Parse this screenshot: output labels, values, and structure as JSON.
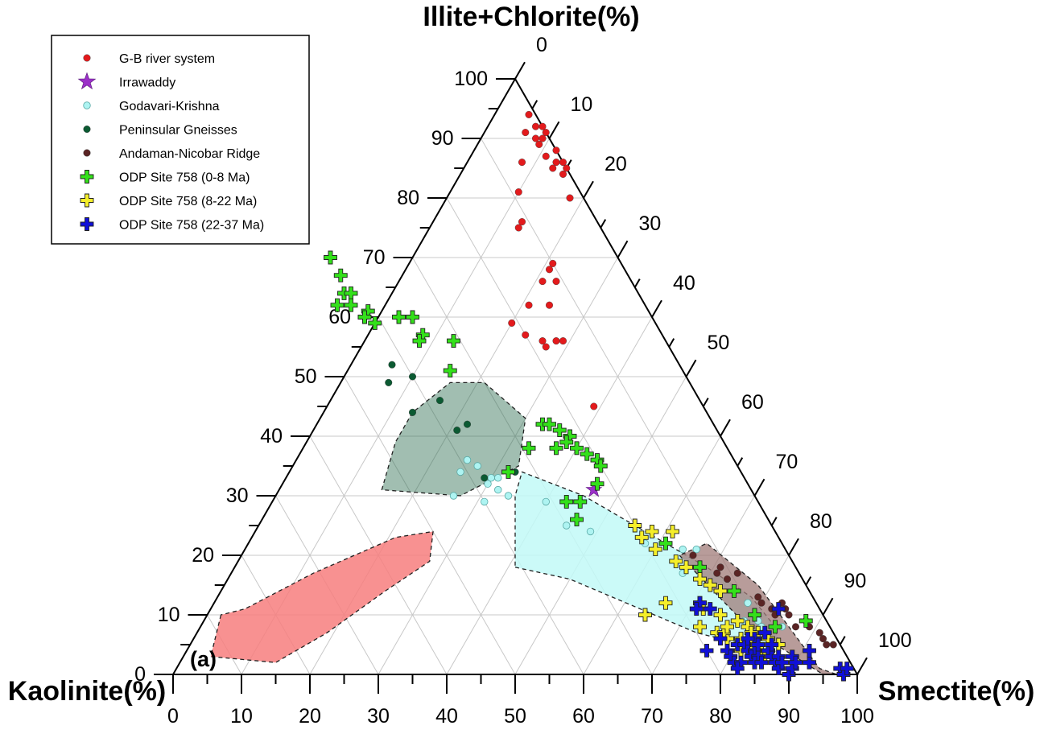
{
  "chart_data": {
    "type": "scatter",
    "subtype": "ternary",
    "panel_label": "(a)",
    "axes": {
      "top": "Illite+Chlorite(%)",
      "left": "Kaolinite(%)",
      "right": "Smectite(%)"
    },
    "ticks": [
      "0",
      "10",
      "20",
      "30",
      "40",
      "50",
      "60",
      "70",
      "80",
      "90",
      "100"
    ],
    "grid": true,
    "legend_position": "top-left",
    "legend": [
      {
        "label": "G-B river system",
        "marker": "dot",
        "color": "#e31a1c"
      },
      {
        "label": "Irrawaddy",
        "marker": "star",
        "color": "#9b30c8"
      },
      {
        "label": "Godavari-Krishna",
        "marker": "circle",
        "color": "#aef4f2"
      },
      {
        "label": "Peninsular Gneisses",
        "marker": "dot",
        "color": "#0b5a32"
      },
      {
        "label": "Andaman-Nicobar Ridge",
        "marker": "dot",
        "color": "#5a2424"
      },
      {
        "label": "ODP Site 758 (0-8 Ma)",
        "marker": "plus",
        "color": "#33e01a"
      },
      {
        "label": "ODP Site 758 (8-22 Ma)",
        "marker": "plus",
        "color": "#f5ee2a"
      },
      {
        "label": "ODP Site 758 (22-37 Ma)",
        "marker": "plus",
        "color": "#1010d8"
      }
    ],
    "fields": [
      {
        "series": "G-B river system",
        "fill": "#f77e7e",
        "opacity": 0.85,
        "outline": [
          [
            10,
            88,
            2
          ],
          [
            3,
            93,
            4
          ],
          [
            2,
            84,
            14
          ],
          [
            7,
            74,
            19
          ],
          [
            14,
            62,
            24
          ],
          [
            19,
            53,
            28
          ],
          [
            24,
            50,
            26
          ],
          [
            23,
            56,
            21
          ],
          [
            17,
            71,
            12
          ],
          [
            11,
            84,
            5
          ]
        ]
      },
      {
        "series": "Peninsular Gneisses",
        "fill": "#2f6e52",
        "opacity": 0.45,
        "outline": [
          [
            31,
            54,
            15
          ],
          [
            39,
            48,
            13
          ],
          [
            44,
            43,
            13
          ],
          [
            49,
            35,
            16
          ],
          [
            49,
            30,
            21
          ],
          [
            43,
            27,
            30
          ],
          [
            35,
            32,
            33
          ],
          [
            30,
            43,
            27
          ]
        ]
      },
      {
        "series": "Godavari-Krishna",
        "fill": "#c2f9f7",
        "opacity": 0.85,
        "outline": [
          [
            18,
            41,
            41
          ],
          [
            16,
            34,
            50
          ],
          [
            7,
            20,
            73
          ],
          [
            5,
            14,
            81
          ],
          [
            3,
            11,
            86
          ],
          [
            5,
            9,
            86
          ],
          [
            8,
            8,
            84
          ],
          [
            13,
            9,
            78
          ],
          [
            18,
            13,
            69
          ],
          [
            23,
            18,
            59
          ],
          [
            30,
            25,
            45
          ],
          [
            34,
            32,
            34
          ],
          [
            30,
            35,
            35
          ]
        ]
      },
      {
        "series": "Andaman-Nicobar Ridge",
        "fill": "#a07b78",
        "opacity": 0.75,
        "outline": [
          [
            20,
            16,
            64
          ],
          [
            8,
            12,
            80
          ],
          [
            0,
            5,
            95
          ],
          [
            0,
            3,
            97
          ],
          [
            1,
            5,
            94
          ],
          [
            15,
            7,
            78
          ],
          [
            22,
            11,
            67
          ]
        ]
      }
    ],
    "series": [
      {
        "name": "G-B river system",
        "points": [
          [
            94,
            1,
            5
          ],
          [
            91,
            3,
            6
          ],
          [
            92,
            1,
            7
          ],
          [
            90,
            2,
            8
          ],
          [
            92,
            0,
            8
          ],
          [
            91,
            0,
            9
          ],
          [
            89,
            2,
            9
          ],
          [
            90,
            1,
            9
          ],
          [
            87,
            2,
            11
          ],
          [
            88,
            0,
            12
          ],
          [
            86,
            1,
            13
          ],
          [
            86,
            0,
            14
          ],
          [
            85,
            2,
            13
          ],
          [
            84,
            1,
            15
          ],
          [
            85,
            0,
            15
          ],
          [
            80,
            2,
            18
          ],
          [
            86,
            6,
            8
          ],
          [
            81,
            9,
            10
          ],
          [
            76,
            11,
            13
          ],
          [
            75,
            12,
            13
          ],
          [
            69,
            10,
            21
          ],
          [
            68,
            11,
            21
          ],
          [
            66,
            13,
            21
          ],
          [
            66,
            11,
            23
          ],
          [
            62,
            17,
            21
          ],
          [
            62,
            14,
            24
          ],
          [
            59,
            21,
            20
          ],
          [
            57,
            20,
            23
          ],
          [
            56,
            15,
            29
          ],
          [
            56,
            16,
            28
          ],
          [
            55,
            18,
            27
          ],
          [
            56,
            18,
            26
          ],
          [
            45,
            16,
            39
          ]
        ]
      },
      {
        "name": "Irrawaddy",
        "points": [
          [
            31,
            23,
            46
          ]
        ]
      },
      {
        "name": "Godavari-Krishna",
        "points": [
          [
            36,
            39,
            25
          ],
          [
            35,
            38,
            27
          ],
          [
            34,
            41,
            25
          ],
          [
            33,
            36,
            31
          ],
          [
            33,
            37,
            30
          ],
          [
            32,
            38,
            30
          ],
          [
            31,
            37,
            32
          ],
          [
            30,
            36,
            34
          ],
          [
            30,
            44,
            26
          ],
          [
            29,
            31,
            40
          ],
          [
            29,
            40,
            31
          ],
          [
            25,
            30,
            45
          ],
          [
            24,
            27,
            49
          ],
          [
            22,
            20,
            58
          ],
          [
            21,
            13,
            66
          ],
          [
            21,
            15,
            64
          ],
          [
            17,
            17,
            66
          ],
          [
            12,
            10,
            78
          ],
          [
            12,
            22,
            66
          ],
          [
            9,
            12,
            79
          ],
          [
            9,
            10,
            81
          ],
          [
            8,
            7,
            85
          ],
          [
            8,
            10,
            82
          ]
        ]
      },
      {
        "name": "Peninsular Gneisses",
        "points": [
          [
            52,
            42,
            6
          ],
          [
            50,
            40,
            10
          ],
          [
            49,
            44,
            7
          ],
          [
            46,
            38,
            16
          ],
          [
            44,
            43,
            13
          ],
          [
            42,
            36,
            22
          ],
          [
            41,
            38,
            21
          ],
          [
            34,
            33,
            33
          ],
          [
            33,
            38,
            29
          ]
        ]
      },
      {
        "name": "Andaman-Nicobar Ridge",
        "points": [
          [
            20,
            14,
            66
          ],
          [
            18,
            11,
            71
          ],
          [
            17,
            9,
            74
          ],
          [
            17,
            12,
            71
          ],
          [
            16,
            11,
            73
          ],
          [
            14,
            11,
            75
          ],
          [
            13,
            8,
            79
          ],
          [
            12,
            8,
            80
          ],
          [
            12,
            5,
            83
          ],
          [
            11,
            7,
            82
          ],
          [
            11,
            5,
            84
          ],
          [
            10,
            7,
            83
          ],
          [
            10,
            5,
            85
          ],
          [
            9,
            3,
            88
          ],
          [
            8,
            5,
            87
          ],
          [
            8,
            3,
            89
          ],
          [
            7,
            2,
            91
          ],
          [
            6,
            2,
            92
          ],
          [
            5,
            1,
            94
          ],
          [
            5,
            2,
            93
          ]
        ]
      },
      {
        "name": "ODP Site 758 (0-8 Ma)",
        "points": [
          [
            70,
            42,
            -12
          ],
          [
            67,
            42,
            -9
          ],
          [
            64,
            43,
            -7
          ],
          [
            64,
            42,
            -6
          ],
          [
            62,
            45,
            -7
          ],
          [
            62,
            43,
            -5
          ],
          [
            60,
            42,
            -2
          ],
          [
            61,
            41,
            -2
          ],
          [
            60,
            42,
            -2
          ],
          [
            59,
            41,
            0
          ],
          [
            57,
            35,
            8
          ],
          [
            56,
            36,
            8
          ],
          [
            60,
            35,
            5
          ],
          [
            60,
            37,
            3
          ],
          [
            56,
            31,
            13
          ],
          [
            51,
            34,
            15
          ],
          [
            42,
            25,
            33
          ],
          [
            42,
            24,
            34
          ],
          [
            41,
            23,
            36
          ],
          [
            40,
            22,
            38
          ],
          [
            39,
            23,
            38
          ],
          [
            38,
            25,
            37
          ],
          [
            38,
            22,
            40
          ],
          [
            37,
            21,
            42
          ],
          [
            36,
            20,
            44
          ],
          [
            35,
            20,
            45
          ],
          [
            32,
            22,
            46
          ],
          [
            38,
            29,
            33
          ],
          [
            34,
            34,
            32
          ],
          [
            29,
            28,
            43
          ],
          [
            29,
            26,
            45
          ],
          [
            26,
            28,
            46
          ],
          [
            22,
            17,
            61
          ],
          [
            18,
            14,
            68
          ],
          [
            14,
            11,
            75
          ],
          [
            9,
            3,
            88
          ],
          [
            8,
            8,
            84
          ],
          [
            10,
            10,
            80
          ]
        ]
      },
      {
        "name": "ODP Site 758 (8-22 Ma)",
        "points": [
          [
            25,
            20,
            55
          ],
          [
            24,
            18,
            58
          ],
          [
            24,
            15,
            61
          ],
          [
            23,
            20,
            57
          ],
          [
            21,
            19,
            60
          ],
          [
            19,
            17,
            64
          ],
          [
            18,
            16,
            66
          ],
          [
            16,
            15,
            69
          ],
          [
            15,
            14,
            71
          ],
          [
            14,
            13,
            73
          ],
          [
            12,
            22,
            66
          ],
          [
            10,
            26,
            64
          ],
          [
            12,
            17,
            71
          ],
          [
            11,
            17,
            72
          ],
          [
            8,
            19,
            73
          ],
          [
            7,
            17,
            76
          ],
          [
            6,
            16,
            78
          ],
          [
            4,
            15,
            81
          ],
          [
            5,
            14,
            81
          ],
          [
            5,
            13,
            82
          ],
          [
            6,
            12,
            82
          ],
          [
            8,
            12,
            80
          ],
          [
            7,
            11,
            82
          ],
          [
            6,
            10,
            84
          ],
          [
            5,
            9,
            86
          ],
          [
            4,
            12,
            84
          ],
          [
            4,
            14,
            82
          ],
          [
            7,
            16,
            77
          ],
          [
            8,
            15,
            77
          ],
          [
            3,
            12,
            85
          ],
          [
            10,
            15,
            75
          ],
          [
            9,
            13,
            78
          ],
          [
            7,
            12,
            81
          ],
          [
            6,
            14,
            80
          ]
        ]
      },
      {
        "name": "ODP Site 758 (22-37 Ma)",
        "points": [
          [
            12,
            17,
            71
          ],
          [
            11,
            18,
            71
          ],
          [
            11,
            16,
            73
          ],
          [
            4,
            20,
            76
          ],
          [
            6,
            17,
            77
          ],
          [
            4,
            17,
            79
          ],
          [
            3,
            17,
            80
          ],
          [
            2,
            17,
            81
          ],
          [
            2,
            16,
            82
          ],
          [
            1,
            17,
            82
          ],
          [
            5,
            15,
            80
          ],
          [
            5,
            14,
            81
          ],
          [
            4,
            14,
            82
          ],
          [
            4,
            13,
            83
          ],
          [
            3,
            14,
            83
          ],
          [
            3,
            13,
            84
          ],
          [
            2,
            14,
            84
          ],
          [
            2,
            13,
            85
          ],
          [
            6,
            12,
            82
          ],
          [
            6,
            13,
            81
          ],
          [
            5,
            12,
            83
          ],
          [
            4,
            11,
            85
          ],
          [
            3,
            11,
            86
          ],
          [
            2,
            11,
            87
          ],
          [
            1,
            11,
            88
          ],
          [
            0,
            10,
            90
          ],
          [
            3,
            10,
            87
          ],
          [
            2,
            10,
            88
          ],
          [
            1,
            9,
            90
          ],
          [
            3,
            8,
            89
          ],
          [
            2,
            8,
            90
          ],
          [
            2,
            6,
            92
          ],
          [
            11,
            6,
            83
          ],
          [
            4,
            5,
            91
          ],
          [
            7,
            10,
            83
          ],
          [
            5,
            10,
            85
          ],
          [
            1,
            2,
            97
          ],
          [
            0,
            2,
            98
          ],
          [
            1,
            1,
            98
          ]
        ]
      }
    ]
  }
}
